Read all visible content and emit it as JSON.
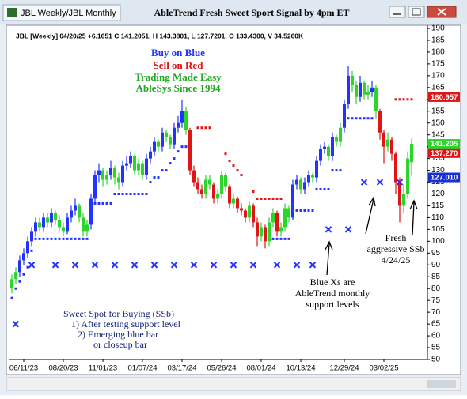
{
  "window": {
    "title": "JBL Weekly/JBL Monthly"
  },
  "chart_data": {
    "type": "candlestick",
    "title": "AbleTrend Fresh Sweet Sport Signal by 4pm ET",
    "subtitle": "JBL [Weekly] 04/20/25 +6.1651 C 141.2051, H 143.3801, L 127.7201, O 133.4300, V 34.5260K",
    "ylim": [
      50,
      190
    ],
    "yticks": [
      50,
      55,
      60,
      65,
      70,
      75,
      80,
      85,
      90,
      95,
      100,
      105,
      110,
      115,
      120,
      125,
      130,
      135,
      140,
      145,
      150,
      155,
      160,
      165,
      170,
      175,
      180,
      185,
      190
    ],
    "xticks": [
      {
        "value": 3,
        "label": "06/11/23"
      },
      {
        "value": 13,
        "label": "08/20/23"
      },
      {
        "value": 23,
        "label": "11/01/23"
      },
      {
        "value": 33,
        "label": "01/07/24"
      },
      {
        "value": 43,
        "label": "03/17/24"
      },
      {
        "value": 53,
        "label": "05/26/24"
      },
      {
        "value": 63,
        "label": "08/01/24"
      },
      {
        "value": 73,
        "label": "10/13/24"
      },
      {
        "value": 84,
        "label": "12/29/24"
      },
      {
        "value": 94,
        "label": "03/02/25"
      }
    ],
    "candles": [
      [
        80,
        86,
        78,
        84
      ],
      [
        84,
        89,
        82,
        87
      ],
      [
        87,
        94,
        85,
        92
      ],
      [
        92,
        97,
        90,
        95
      ],
      [
        95,
        102,
        93,
        100
      ],
      [
        100,
        106,
        98,
        104
      ],
      [
        104,
        110,
        102,
        108
      ],
      [
        108,
        110,
        104,
        106
      ],
      [
        106,
        112,
        104,
        110
      ],
      [
        110,
        112,
        106,
        108
      ],
      [
        108,
        114,
        106,
        112
      ],
      [
        112,
        113,
        107,
        109
      ],
      [
        109,
        111,
        104,
        106
      ],
      [
        106,
        108,
        102,
        104
      ],
      [
        104,
        112,
        103,
        110
      ],
      [
        110,
        115,
        108,
        113
      ],
      [
        113,
        118,
        111,
        115
      ],
      [
        115,
        116,
        108,
        110
      ],
      [
        110,
        112,
        102,
        104
      ],
      [
        104,
        109,
        102,
        107
      ],
      [
        107,
        120,
        105,
        118
      ],
      [
        118,
        130,
        116,
        128
      ],
      [
        128,
        133,
        125,
        130
      ],
      [
        130,
        131,
        123,
        126
      ],
      [
        126,
        130,
        124,
        128
      ],
      [
        128,
        134,
        126,
        131
      ],
      [
        131,
        132,
        124,
        127
      ],
      [
        127,
        129,
        122,
        125
      ],
      [
        125,
        134,
        123,
        132
      ],
      [
        132,
        136,
        130,
        133
      ],
      [
        133,
        138,
        131,
        136
      ],
      [
        136,
        137,
        128,
        130
      ],
      [
        130,
        135,
        128,
        133
      ],
      [
        133,
        134,
        126,
        128
      ],
      [
        128,
        137,
        126,
        135
      ],
      [
        135,
        140,
        133,
        138
      ],
      [
        138,
        144,
        136,
        142
      ],
      [
        142,
        143,
        138,
        140
      ],
      [
        140,
        148,
        138,
        146
      ],
      [
        146,
        147,
        142,
        144
      ],
      [
        144,
        145,
        139,
        141
      ],
      [
        141,
        150,
        139,
        148
      ],
      [
        148,
        153,
        146,
        150
      ],
      [
        150,
        160,
        148,
        155
      ],
      [
        155,
        157,
        145,
        147
      ],
      [
        147,
        148,
        128,
        130
      ],
      [
        130,
        132,
        123,
        125
      ],
      [
        125,
        127,
        120,
        122
      ],
      [
        122,
        124,
        118,
        120
      ],
      [
        120,
        128,
        118,
        126
      ],
      [
        126,
        128,
        122,
        124
      ],
      [
        124,
        125,
        116,
        118
      ],
      [
        118,
        122,
        116,
        120
      ],
      [
        120,
        130,
        118,
        128
      ],
      [
        128,
        129,
        121,
        123
      ],
      [
        123,
        124,
        114,
        116
      ],
      [
        116,
        120,
        114,
        118
      ],
      [
        118,
        119,
        112,
        114
      ],
      [
        114,
        116,
        111,
        113
      ],
      [
        113,
        114,
        108,
        110
      ],
      [
        110,
        117,
        108,
        115
      ],
      [
        115,
        116,
        106,
        108
      ],
      [
        108,
        110,
        98,
        102
      ],
      [
        102,
        108,
        100,
        106
      ],
      [
        106,
        107,
        97,
        100
      ],
      [
        100,
        110,
        98,
        108
      ],
      [
        108,
        114,
        106,
        112
      ],
      [
        112,
        113,
        102,
        104
      ],
      [
        104,
        108,
        102,
        106
      ],
      [
        106,
        116,
        104,
        114
      ],
      [
        114,
        115,
        108,
        110
      ],
      [
        110,
        126,
        109,
        124
      ],
      [
        124,
        128,
        122,
        126
      ],
      [
        126,
        127,
        120,
        122
      ],
      [
        122,
        127,
        120,
        125
      ],
      [
        125,
        130,
        123,
        128
      ],
      [
        128,
        129,
        125,
        127
      ],
      [
        127,
        136,
        125,
        134
      ],
      [
        134,
        141,
        132,
        139
      ],
      [
        139,
        142,
        137,
        140
      ],
      [
        140,
        141,
        134,
        136
      ],
      [
        136,
        146,
        134,
        144
      ],
      [
        144,
        145,
        140,
        142
      ],
      [
        142,
        150,
        140,
        148
      ],
      [
        148,
        160,
        146,
        158
      ],
      [
        158,
        174,
        156,
        170
      ],
      [
        170,
        172,
        163,
        166
      ],
      [
        166,
        168,
        158,
        161
      ],
      [
        161,
        170,
        159,
        167
      ],
      [
        167,
        168,
        160,
        162
      ],
      [
        162,
        166,
        160,
        163
      ],
      [
        163,
        168,
        161,
        165
      ],
      [
        165,
        166,
        152,
        155
      ],
      [
        155,
        156,
        143,
        146
      ],
      [
        146,
        147,
        133,
        140
      ],
      [
        140,
        146,
        138,
        143
      ],
      [
        143,
        144,
        134,
        137
      ],
      [
        137,
        138,
        120,
        125
      ],
      [
        125,
        127,
        108,
        115
      ],
      [
        115,
        124,
        112,
        120
      ],
      [
        120,
        138,
        118,
        135
      ],
      [
        133.43,
        143.3801,
        127.7201,
        141.2051
      ]
    ],
    "colors": [
      "#2bd62b",
      "#2bd62b",
      "#2233ff",
      "#2233ff",
      "#2233ff",
      "#2233ff",
      "#2233ff",
      "#2bd62b",
      "#2233ff",
      "#2bd62b",
      "#2233ff",
      "#2bd62b",
      "#2bd62b",
      "#2bd62b",
      "#2233ff",
      "#2233ff",
      "#2233ff",
      "#2bd62b",
      "#2bd62b",
      "#2bd62b",
      "#2233ff",
      "#2233ff",
      "#2233ff",
      "#2bd62b",
      "#2bd62b",
      "#2233ff",
      "#2bd62b",
      "#2bd62b",
      "#2233ff",
      "#2233ff",
      "#2233ff",
      "#2bd62b",
      "#2bd62b",
      "#2bd62b",
      "#2233ff",
      "#2233ff",
      "#2233ff",
      "#2bd62b",
      "#2233ff",
      "#2bd62b",
      "#2bd62b",
      "#2233ff",
      "#2233ff",
      "#2233ff",
      "#2bd62b",
      "#e01515",
      "#e01515",
      "#e01515",
      "#e01515",
      "#2bd62b",
      "#2bd62b",
      "#e01515",
      "#2bd62b",
      "#2bd62b",
      "#2bd62b",
      "#e01515",
      "#2bd62b",
      "#e01515",
      "#e01515",
      "#e01515",
      "#2bd62b",
      "#e01515",
      "#e01515",
      "#2bd62b",
      "#e01515",
      "#2bd62b",
      "#2bd62b",
      "#e01515",
      "#2bd62b",
      "#2bd62b",
      "#2bd62b",
      "#2233ff",
      "#2233ff",
      "#2bd62b",
      "#2233ff",
      "#2233ff",
      "#2bd62b",
      "#2233ff",
      "#2233ff",
      "#2233ff",
      "#2bd62b",
      "#2233ff",
      "#2bd62b",
      "#2bd62b",
      "#2233ff",
      "#2233ff",
      "#2bd62b",
      "#2bd62b",
      "#2233ff",
      "#2bd62b",
      "#2bd62b",
      "#2233ff",
      "#2bd62b",
      "#e01515",
      "#e01515",
      "#2bd62b",
      "#e01515",
      "#e01515",
      "#e01515",
      "#2bd62b",
      "#2bd62b",
      "#2bd62b"
    ],
    "support_color": "#2233ff",
    "support": [
      76,
      80,
      83,
      86,
      89,
      96,
      101,
      101,
      101,
      101,
      101,
      101,
      101,
      101,
      101,
      101,
      101,
      101,
      101,
      101,
      116,
      116,
      116,
      116,
      116,
      116,
      120,
      120,
      120,
      120,
      120,
      120,
      120,
      120,
      120,
      125,
      127,
      127,
      130,
      130,
      133,
      135,
      138,
      140,
      140,
      null,
      null,
      null,
      null,
      null,
      null,
      null,
      null,
      null,
      null,
      null,
      null,
      null,
      null,
      null,
      null,
      null,
      null,
      null,
      null,
      null,
      101,
      101,
      101,
      101,
      101,
      113,
      113,
      113,
      113,
      113,
      113,
      122,
      122,
      122,
      122,
      130,
      130,
      130,
      152,
      152,
      152,
      152,
      152,
      152,
      152,
      152,
      null,
      null,
      null,
      null,
      null,
      null,
      null,
      null,
      null,
      null
    ],
    "resistance_color": "#e01515",
    "resistance": [
      null,
      null,
      null,
      null,
      null,
      null,
      null,
      null,
      null,
      null,
      null,
      null,
      null,
      null,
      null,
      null,
      null,
      null,
      null,
      null,
      null,
      null,
      null,
      null,
      null,
      null,
      null,
      null,
      null,
      null,
      null,
      null,
      null,
      null,
      null,
      null,
      null,
      null,
      null,
      null,
      null,
      null,
      null,
      null,
      null,
      null,
      null,
      148,
      148,
      148,
      148,
      null,
      null,
      null,
      137,
      134,
      132,
      130,
      128,
      null,
      null,
      121,
      118,
      118,
      118,
      118,
      118,
      118,
      118,
      null,
      null,
      null,
      null,
      null,
      null,
      null,
      null,
      null,
      null,
      null,
      null,
      null,
      null,
      null,
      null,
      null,
      null,
      null,
      null,
      null,
      null,
      null,
      null,
      null,
      null,
      null,
      null,
      160,
      160,
      160,
      160,
      160
    ],
    "x_marks": {
      "color": "#2233ff",
      "x": [
        1,
        5,
        11,
        16,
        21,
        26,
        31,
        36,
        41,
        46,
        51,
        56,
        61,
        67,
        72,
        76,
        80,
        85,
        89,
        93,
        98
      ],
      "values": [
        65,
        90,
        90,
        90,
        90,
        90,
        90,
        90,
        90,
        90,
        90,
        90,
        90,
        90,
        90,
        90,
        105,
        105,
        125,
        125,
        125
      ]
    },
    "price_tags": [
      {
        "value": 160.957,
        "color": "#e01515"
      },
      {
        "value": 141.205,
        "color": "#2bd62b"
      },
      {
        "value": 137.27,
        "label": "137.270",
        "color": "#e01515"
      },
      {
        "value": 127.01,
        "label": "127.010",
        "color": "#1a2fd0"
      }
    ],
    "annotations": [
      {
        "text": "Buy on Blue",
        "color": "#2233ff"
      },
      {
        "text": "Sell on Red",
        "color": "#e01515"
      },
      {
        "text": "Trading Made Easy",
        "color": "#22a822"
      },
      {
        "text": "AbleSys Since 1994",
        "color": "#22a822"
      },
      {
        "text": "Blue Xs are",
        "color": "#000000"
      },
      {
        "text": "AbleTrend monthly",
        "color": "#000000"
      },
      {
        "text": "support levels",
        "color": "#000000"
      },
      {
        "text": "Fresh",
        "color": "#000000"
      },
      {
        "text": "aggressive SSb",
        "color": "#000000"
      },
      {
        "text": "4/24/25",
        "color": "#000000"
      },
      {
        "text": "Sweet Spot for Buying (SSb)",
        "color": "#10207a"
      },
      {
        "text": "1) After testing support level",
        "color": "#10207a"
      },
      {
        "text": "2) Emerging blue bar",
        "color": "#10207a"
      },
      {
        "text": "or closeup bar",
        "color": "#10207a"
      }
    ]
  }
}
